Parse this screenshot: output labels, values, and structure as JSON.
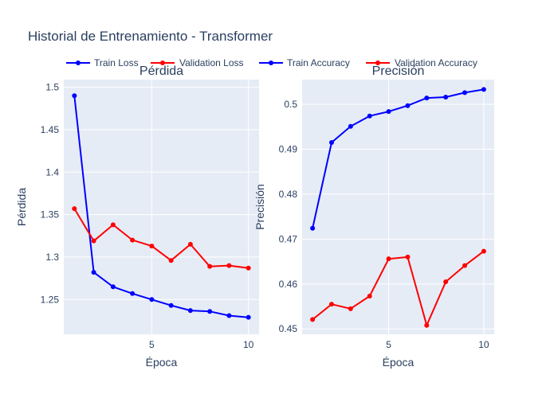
{
  "chart_data": [
    {
      "type": "line",
      "title": "Pérdida",
      "xlabel": "Época",
      "ylabel": "Pérdida",
      "x": [
        1,
        2,
        3,
        4,
        5,
        6,
        7,
        8,
        9,
        10
      ],
      "xlim": [
        0.45,
        10.55
      ],
      "ylim": [
        1.209,
        1.509
      ],
      "x_ticks": [
        5,
        10
      ],
      "y_ticks": [
        1.25,
        1.3,
        1.35,
        1.4,
        1.45,
        1.5
      ],
      "y_tick_labels": [
        "1.25",
        "1.3",
        "1.35",
        "1.4",
        "1.45",
        "1.5"
      ],
      "grid": true,
      "series": [
        {
          "name": "Train Loss",
          "color": "#0000ff",
          "values": [
            1.49,
            1.282,
            1.265,
            1.257,
            1.25,
            1.243,
            1.237,
            1.236,
            1.231,
            1.229
          ]
        },
        {
          "name": "Validation Loss",
          "color": "#ff0000",
          "values": [
            1.357,
            1.319,
            1.338,
            1.32,
            1.313,
            1.296,
            1.315,
            1.289,
            1.29,
            1.287
          ]
        }
      ]
    },
    {
      "type": "line",
      "title": "Precisión",
      "xlabel": "Época",
      "ylabel": "Precisión",
      "x": [
        1,
        2,
        3,
        4,
        5,
        6,
        7,
        8,
        9,
        10
      ],
      "xlim": [
        0.45,
        10.55
      ],
      "ylim": [
        0.4488,
        0.5055
      ],
      "x_ticks": [
        5,
        10
      ],
      "y_ticks": [
        0.45,
        0.46,
        0.47,
        0.48,
        0.49,
        0.5
      ],
      "y_tick_labels": [
        "0.45",
        "0.46",
        "0.47",
        "0.48",
        "0.49",
        "0.5"
      ],
      "grid": true,
      "series": [
        {
          "name": "Train Accuracy",
          "color": "#0000ff",
          "values": [
            0.4724,
            0.4915,
            0.4951,
            0.4974,
            0.4984,
            0.4997,
            0.5014,
            0.5016,
            0.5026,
            0.5033
          ]
        },
        {
          "name": "Validation Accuracy",
          "color": "#ff0000",
          "values": [
            0.4521,
            0.4555,
            0.4545,
            0.4573,
            0.4656,
            0.466,
            0.4508,
            0.4605,
            0.4641,
            0.4673
          ]
        }
      ]
    }
  ],
  "figure": {
    "title": "Historial de Entrenamiento - Transformer",
    "background": "#ffffff",
    "plot_background": "#e5ecf6",
    "gridline_color": "#ffffff",
    "text_color": "#2a3f5f",
    "legend_position": "top",
    "legend": [
      {
        "label": "Train Loss",
        "color": "#0000ff"
      },
      {
        "label": "Validation Loss",
        "color": "#ff0000"
      },
      {
        "label": "Train Accuracy",
        "color": "#0000ff"
      },
      {
        "label": "Validation Accuracy",
        "color": "#ff0000"
      }
    ]
  }
}
